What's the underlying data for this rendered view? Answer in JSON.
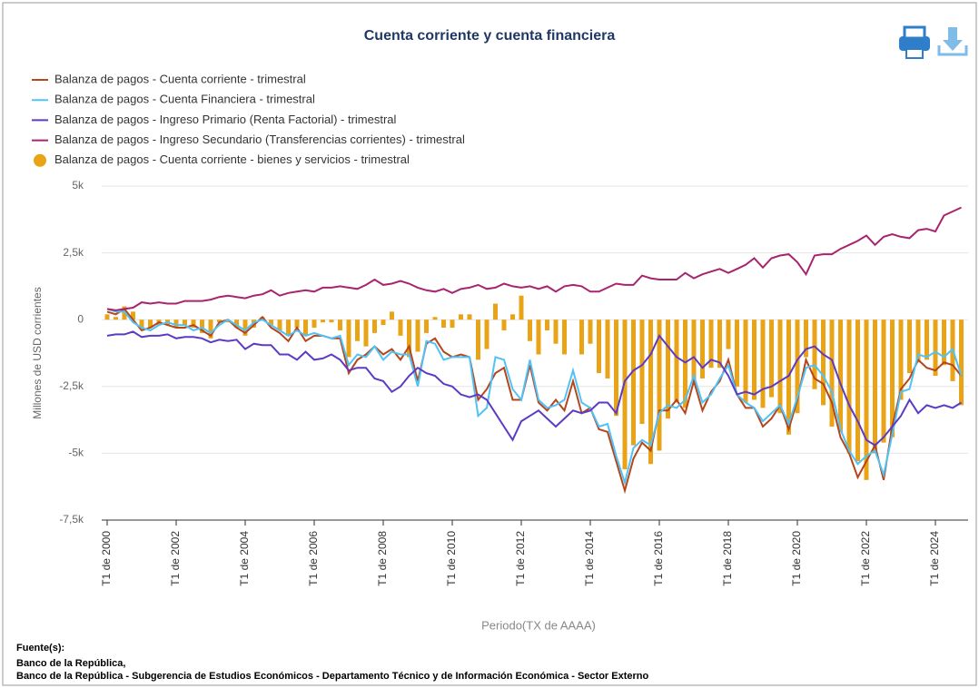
{
  "chart_data": {
    "type": "line",
    "title": "Cuenta corriente y cuenta financiera",
    "y_label": "Millones de USD corrientes",
    "x_label": "Periodo(TX de AAAA)",
    "categories": [
      "T1 de 2000",
      null,
      null,
      null,
      null,
      null,
      null,
      null,
      "T1 de 2002",
      null,
      null,
      null,
      null,
      null,
      null,
      null,
      "T1 de 2004",
      null,
      null,
      null,
      null,
      null,
      null,
      null,
      "T1 de 2006",
      null,
      null,
      null,
      null,
      null,
      null,
      null,
      "T1 de 2008",
      null,
      null,
      null,
      null,
      null,
      null,
      null,
      "T1 de 2010",
      null,
      null,
      null,
      null,
      null,
      null,
      null,
      "T1 de 2012",
      null,
      null,
      null,
      null,
      null,
      null,
      null,
      "T1 de 2014",
      null,
      null,
      null,
      null,
      null,
      null,
      null,
      "T1 de 2016",
      null,
      null,
      null,
      null,
      null,
      null,
      null,
      "T1 de 2018",
      null,
      null,
      null,
      null,
      null,
      null,
      null,
      "T1 de 2020",
      null,
      null,
      null,
      null,
      null,
      null,
      null,
      "T1 de 2022",
      null,
      null,
      null,
      null,
      null,
      null,
      null,
      "T1 de 2024",
      null,
      null,
      null
    ],
    "ylim": [
      -7500,
      5000
    ],
    "yticks": [
      {
        "value": 5000,
        "label": "5k"
      },
      {
        "value": 2500,
        "label": "2,5k"
      },
      0,
      {
        "value": -2500,
        "label": "-2,5k"
      },
      {
        "value": -5000,
        "label": "-5k"
      },
      {
        "value": -7500,
        "label": "-7,5k"
      }
    ],
    "grid": true,
    "series": [
      {
        "name": "Balanza de pagos - Cuenta corriente - trimestral",
        "type": "line",
        "color": "#b5451b",
        "values": [
          300,
          200,
          400,
          0,
          -400,
          -300,
          -100,
          -200,
          -300,
          -300,
          -200,
          -400,
          -600,
          -100,
          0,
          -300,
          -500,
          -200,
          100,
          -300,
          -500,
          -800,
          -300,
          -800,
          -600,
          -600,
          -700,
          -700,
          -2000,
          -1500,
          -1300,
          -1000,
          -1300,
          -1100,
          -1500,
          -1000,
          -2300,
          -900,
          -700,
          -1200,
          -1400,
          -1300,
          -1400,
          -3000,
          -2600,
          -2000,
          -1800,
          -3000,
          -3000,
          -1700,
          -3100,
          -3400,
          -3000,
          -3400,
          -2300,
          -3500,
          -3300,
          -4100,
          -4200,
          -5300,
          -6400,
          -5200,
          -4600,
          -4900,
          -3400,
          -3400,
          -3000,
          -3500,
          -2300,
          -3400,
          -2700,
          -2300,
          -1500,
          -2800,
          -3300,
          -3300,
          -4000,
          -3700,
          -3200,
          -4100,
          -3000,
          -1500,
          -2200,
          -2400,
          -3100,
          -4400,
          -5000,
          -5900,
          -5300,
          -4700,
          -6000,
          -4000,
          -2600,
          -2200,
          -1500,
          -1800,
          -1900,
          -1600,
          -1700,
          -2100
        ]
      },
      {
        "name": "Balanza de pagos - Cuenta Financiera - trimestral",
        "type": "line",
        "color": "#4fc3f7",
        "values": [
          400,
          300,
          300,
          -100,
          -300,
          -400,
          -200,
          -100,
          -200,
          -200,
          -400,
          -300,
          -500,
          -200,
          0,
          -200,
          -400,
          -100,
          0,
          -200,
          -400,
          -600,
          -400,
          -600,
          -500,
          -600,
          -700,
          -600,
          -1700,
          -1300,
          -1400,
          -1000,
          -1500,
          -1200,
          -1300,
          -1300,
          -2500,
          -800,
          -900,
          -1500,
          -1400,
          -1400,
          -1400,
          -3600,
          -3300,
          -1400,
          -1500,
          -2600,
          -3000,
          -1500,
          -3000,
          -3300,
          -3200,
          -3000,
          -1900,
          -3100,
          -3300,
          -4000,
          -3900,
          -5100,
          -6100,
          -4800,
          -4500,
          -4700,
          -3500,
          -3200,
          -3300,
          -3000,
          -2100,
          -3100,
          -2800,
          -2200,
          -1700,
          -2800,
          -3100,
          -3300,
          -3800,
          -3500,
          -3200,
          -3900,
          -2900,
          -1800,
          -1700,
          -2100,
          -2700,
          -4100,
          -4900,
          -5400,
          -5100,
          -4900,
          -5800,
          -4300,
          -2700,
          -2600,
          -1300,
          -1400,
          -1200,
          -1400,
          -1100,
          -2100
        ]
      },
      {
        "name": "Balanza de pagos - Ingreso Primario (Renta Factorial) - trimestral",
        "type": "line",
        "color": "#5c3bc4",
        "values": [
          -600,
          -550,
          -550,
          -450,
          -650,
          -600,
          -600,
          -550,
          -700,
          -650,
          -650,
          -700,
          -850,
          -750,
          -800,
          -750,
          -1100,
          -900,
          -950,
          -950,
          -1300,
          -1300,
          -1500,
          -1200,
          -1500,
          -1450,
          -1300,
          -1500,
          -1900,
          -1800,
          -1800,
          -2200,
          -2300,
          -2700,
          -2500,
          -2100,
          -1800,
          -2000,
          -2100,
          -2400,
          -2500,
          -2800,
          -2900,
          -2800,
          -3000,
          -3500,
          -4000,
          -4500,
          -3800,
          -3600,
          -3400,
          -3700,
          -4000,
          -3700,
          -3400,
          -3500,
          -3400,
          -3100,
          -3100,
          -3500,
          -2300,
          -1900,
          -1700,
          -1300,
          -600,
          -1000,
          -1400,
          -1600,
          -1400,
          -1800,
          -1500,
          -1600,
          -2100,
          -2800,
          -2700,
          -2800,
          -2600,
          -2500,
          -2300,
          -2100,
          -1500,
          -1100,
          -1000,
          -1300,
          -1500,
          -2400,
          -3200,
          -3800,
          -4500,
          -4700,
          -4400,
          -4000,
          -3600,
          -3000,
          -3500,
          -3200,
          -3300,
          -3200,
          -3300,
          -3100
        ]
      },
      {
        "name": "Balanza de pagos - Ingreso Secundario (Transferencias corrientes) - trimestral",
        "type": "line",
        "color": "#a8246e",
        "values": [
          400,
          350,
          400,
          450,
          650,
          600,
          650,
          600,
          600,
          700,
          700,
          700,
          750,
          850,
          900,
          850,
          800,
          900,
          950,
          1100,
          900,
          1000,
          1050,
          1100,
          1050,
          1200,
          1200,
          1250,
          1200,
          1150,
          1300,
          1500,
          1300,
          1350,
          1450,
          1350,
          1200,
          1100,
          1050,
          1150,
          1000,
          1150,
          1200,
          1300,
          1150,
          1200,
          1350,
          1250,
          1200,
          1250,
          1150,
          1250,
          1050,
          1250,
          1300,
          1250,
          1050,
          1050,
          1200,
          1350,
          1300,
          1300,
          1650,
          1550,
          1500,
          1500,
          1500,
          1750,
          1550,
          1700,
          1800,
          1900,
          1750,
          1900,
          2050,
          2300,
          1950,
          2300,
          2400,
          2450,
          2150,
          1700,
          2400,
          2450,
          2450,
          2650,
          2800,
          2950,
          3150,
          2800,
          3100,
          3200,
          3100,
          3050,
          3350,
          3400,
          3300,
          3900,
          4050,
          4200
        ]
      },
      {
        "name": "Balanza de pagos - Cuenta corriente - bienes y servicios - trimestral",
        "type": "bar",
        "color": "#e8a317",
        "values": [
          200,
          100,
          500,
          300,
          -300,
          -300,
          -200,
          -200,
          -300,
          -200,
          -300,
          -500,
          -700,
          -100,
          -100,
          -300,
          -600,
          -300,
          100,
          -200,
          -400,
          -600,
          -300,
          -600,
          -300,
          -100,
          -100,
          -400,
          -1400,
          -800,
          -1000,
          -500,
          -200,
          300,
          -600,
          -1400,
          -1200,
          -500,
          100,
          -300,
          -300,
          200,
          200,
          -1500,
          -1100,
          600,
          -400,
          200,
          900,
          -800,
          -1300,
          -400,
          -900,
          -1300,
          0,
          -1300,
          -900,
          -2000,
          -2200,
          -3600,
          -5600,
          -4700,
          -3900,
          -5400,
          -4900,
          -3700,
          -3100,
          -3300,
          -2300,
          -2200,
          -1800,
          -1800,
          -1100,
          -2500,
          -3100,
          -3000,
          -3300,
          -2900,
          -3500,
          -4300,
          -3500,
          -1400,
          -2600,
          -3200,
          -4000,
          -4200,
          -5000,
          -5300,
          -6000,
          -5000,
          -4600,
          -4400,
          -3000,
          -2000,
          -1600,
          -1500,
          -2100,
          -1700,
          -2300,
          -3200
        ]
      }
    ]
  },
  "footer": {
    "label": "Fuente(s):",
    "lines": [
      "Banco de la República,",
      "Banco de la República - Subgerencia de Estudios Económicos - Departamento Técnico y de Información Económica - Sector Externo"
    ]
  }
}
